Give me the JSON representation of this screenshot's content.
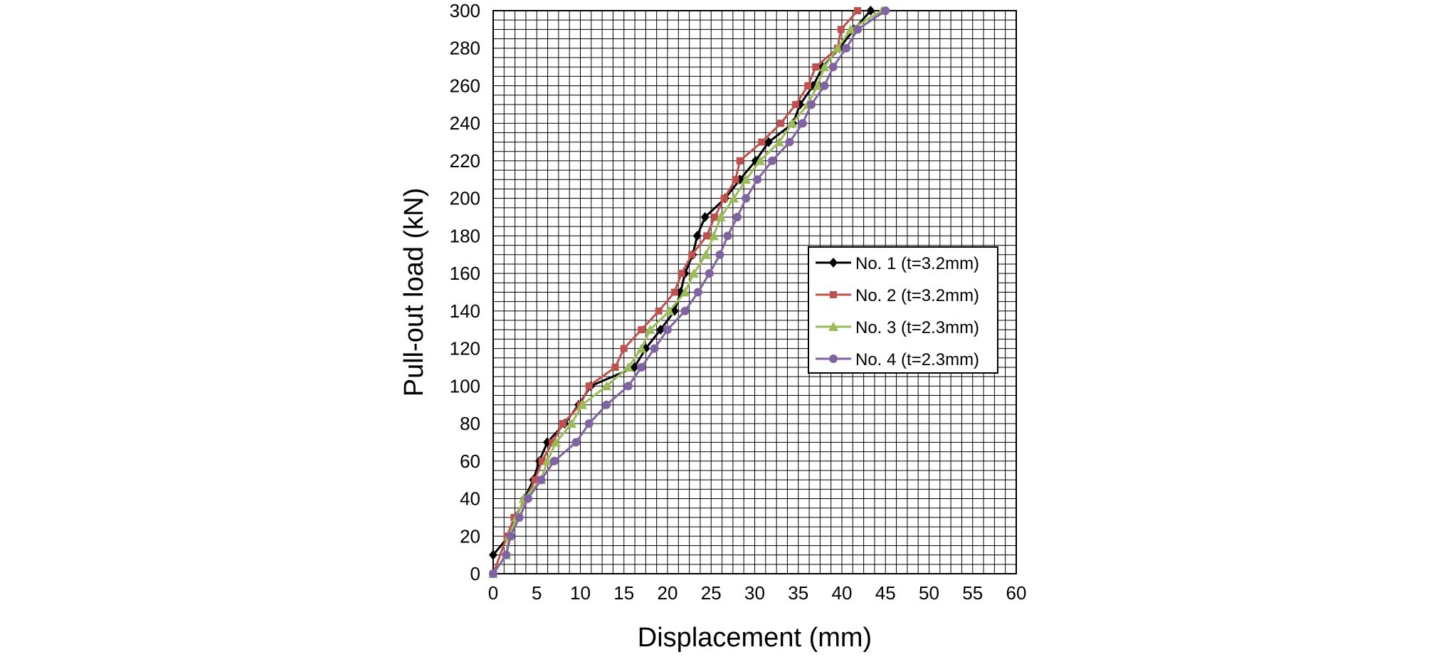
{
  "chart_data": {
    "type": "line",
    "xlabel": "Displacement (mm)",
    "ylabel": "Pull-out load (kN)",
    "xlim": [
      0,
      60
    ],
    "ylim": [
      0,
      300
    ],
    "x_ticks": [
      "0",
      "5",
      "10",
      "15",
      "20",
      "25",
      "30",
      "35",
      "40",
      "45",
      "50",
      "55",
      "60"
    ],
    "y_ticks": [
      "0",
      "20",
      "40",
      "60",
      "80",
      "100",
      "120",
      "140",
      "160",
      "180",
      "200",
      "220",
      "240",
      "260",
      "280",
      "300"
    ],
    "grid": true,
    "legend_position": "right-middle",
    "series": [
      {
        "name": "No. 1 (t=3.2mm)",
        "color": "#000000",
        "marker": "diamond",
        "points": [
          [
            0,
            10
          ],
          [
            1.8,
            20
          ],
          [
            2.6,
            30
          ],
          [
            3.6,
            40
          ],
          [
            4.6,
            50
          ],
          [
            5.3,
            60
          ],
          [
            6.2,
            70
          ],
          [
            8.2,
            80
          ],
          [
            9.8,
            90
          ],
          [
            11.2,
            100
          ],
          [
            16.2,
            110
          ],
          [
            17.5,
            120
          ],
          [
            19.2,
            130
          ],
          [
            20.8,
            140
          ],
          [
            21.5,
            150
          ],
          [
            22.0,
            160
          ],
          [
            22.9,
            170
          ],
          [
            23.4,
            180
          ],
          [
            24.3,
            190
          ],
          [
            26.6,
            200
          ],
          [
            28.3,
            210
          ],
          [
            30.1,
            220
          ],
          [
            31.6,
            230
          ],
          [
            34.4,
            240
          ],
          [
            35.2,
            250
          ],
          [
            36.7,
            260
          ],
          [
            37.8,
            270
          ],
          [
            39.7,
            280
          ],
          [
            41.4,
            290
          ],
          [
            43.3,
            300
          ]
        ]
      },
      {
        "name": "No. 2 (t=3.2mm)",
        "color": "#c0504d",
        "marker": "square",
        "points": [
          [
            0,
            0
          ],
          [
            1.6,
            20
          ],
          [
            2.4,
            30
          ],
          [
            3.8,
            40
          ],
          [
            4.8,
            50
          ],
          [
            5.6,
            60
          ],
          [
            6.8,
            70
          ],
          [
            8.0,
            80
          ],
          [
            10.0,
            90
          ],
          [
            11.0,
            100
          ],
          [
            14.0,
            110
          ],
          [
            15.0,
            120
          ],
          [
            17.0,
            130
          ],
          [
            19.0,
            140
          ],
          [
            20.8,
            150
          ],
          [
            21.6,
            160
          ],
          [
            22.8,
            170
          ],
          [
            24.5,
            180
          ],
          [
            25.4,
            190
          ],
          [
            26.5,
            200
          ],
          [
            27.8,
            210
          ],
          [
            28.3,
            220
          ],
          [
            30.8,
            230
          ],
          [
            33.0,
            240
          ],
          [
            34.7,
            250
          ],
          [
            36.1,
            260
          ],
          [
            37.0,
            270
          ],
          [
            39.5,
            280
          ],
          [
            39.9,
            290
          ],
          [
            41.8,
            300
          ]
        ]
      },
      {
        "name": "No. 3 (t=2.3mm)",
        "color": "#9bbb59",
        "marker": "triangle",
        "points": [
          [
            0,
            0
          ],
          [
            1.5,
            10
          ],
          [
            1.8,
            20
          ],
          [
            2.7,
            30
          ],
          [
            3.5,
            40
          ],
          [
            5.5,
            50
          ],
          [
            6.2,
            60
          ],
          [
            7.2,
            70
          ],
          [
            9.0,
            80
          ],
          [
            10.2,
            90
          ],
          [
            13.0,
            100
          ],
          [
            15.5,
            110
          ],
          [
            17.0,
            120
          ],
          [
            18.0,
            130
          ],
          [
            20.2,
            140
          ],
          [
            22.0,
            150
          ],
          [
            23.0,
            160
          ],
          [
            24.4,
            170
          ],
          [
            25.3,
            180
          ],
          [
            26.1,
            190
          ],
          [
            27.6,
            200
          ],
          [
            29.0,
            210
          ],
          [
            30.6,
            220
          ],
          [
            32.8,
            230
          ],
          [
            34.3,
            240
          ],
          [
            36.1,
            250
          ],
          [
            37.2,
            260
          ],
          [
            38.0,
            270
          ],
          [
            39.5,
            280
          ],
          [
            41.0,
            290
          ],
          [
            44.6,
            300
          ]
        ]
      },
      {
        "name": "No. 4 (t=2.3mm)",
        "color": "#8064a2",
        "marker": "circle",
        "points": [
          [
            0,
            0
          ],
          [
            1.5,
            10
          ],
          [
            2.0,
            20
          ],
          [
            3.0,
            30
          ],
          [
            4.0,
            40
          ],
          [
            5.5,
            50
          ],
          [
            7.0,
            60
          ],
          [
            9.5,
            70
          ],
          [
            11.0,
            80
          ],
          [
            13.0,
            90
          ],
          [
            15.5,
            100
          ],
          [
            17.0,
            110
          ],
          [
            18.5,
            120
          ],
          [
            20.0,
            130
          ],
          [
            22.0,
            140
          ],
          [
            23.5,
            150
          ],
          [
            24.8,
            160
          ],
          [
            26.0,
            170
          ],
          [
            26.9,
            180
          ],
          [
            28.0,
            190
          ],
          [
            29.0,
            200
          ],
          [
            30.3,
            210
          ],
          [
            32.0,
            220
          ],
          [
            34.0,
            230
          ],
          [
            35.5,
            240
          ],
          [
            36.5,
            250
          ],
          [
            38.0,
            260
          ],
          [
            39.0,
            270
          ],
          [
            40.5,
            280
          ],
          [
            41.8,
            290
          ],
          [
            45.0,
            300
          ]
        ]
      }
    ]
  }
}
